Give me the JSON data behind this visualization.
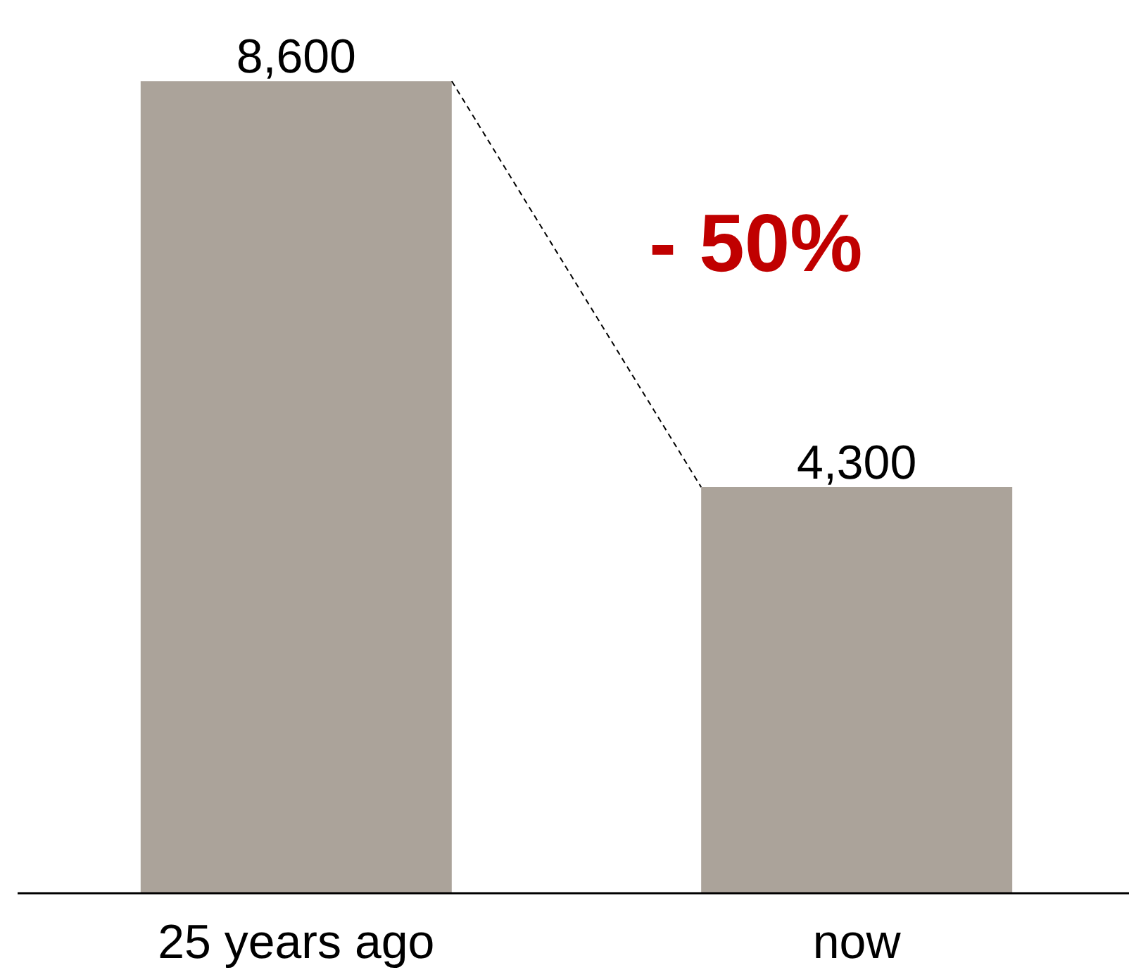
{
  "chart_data": {
    "type": "bar",
    "categories": [
      "25 years ago",
      "now"
    ],
    "values": [
      8600,
      4300
    ],
    "color": "#aba39a",
    "data_labels": true,
    "value_labels": [
      "8,600",
      "4,300"
    ],
    "annotations": [
      "- 50%"
    ],
    "grid": false
  }
}
